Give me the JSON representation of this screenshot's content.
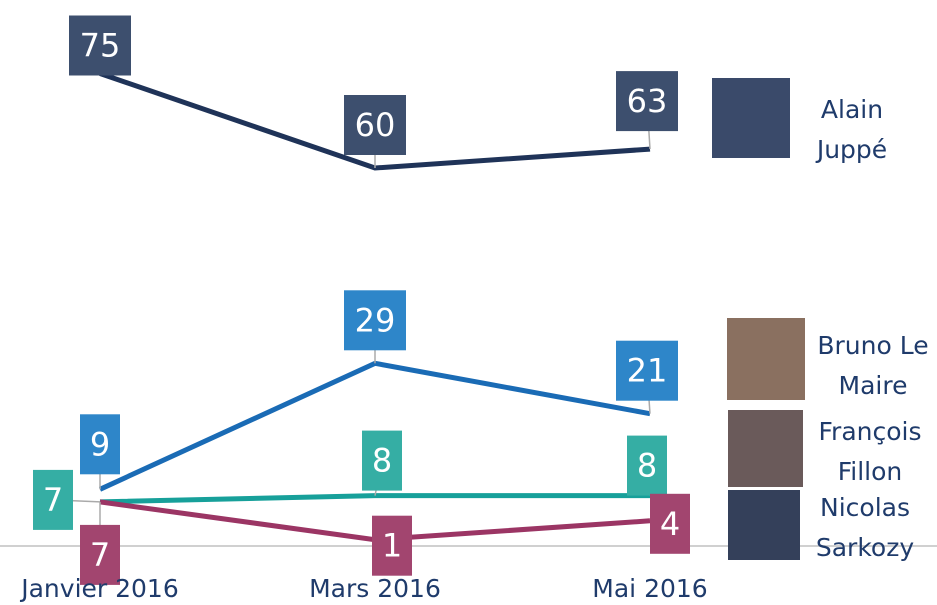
{
  "chart_data": {
    "type": "line",
    "categories": [
      "Janvier 2016",
      "Mars 2016",
      "Mai 2016"
    ],
    "series": [
      {
        "name": "Alain Juppé",
        "color": "#1f3358",
        "values": [
          75,
          60,
          63
        ]
      },
      {
        "name": "Bruno Le Maire",
        "color": "#1a6bb5",
        "values": [
          9,
          29,
          21
        ]
      },
      {
        "name": "François Fillon",
        "color": "#17a09a",
        "values": [
          7,
          8,
          8
        ]
      },
      {
        "name": "Nicolas Sarkozy",
        "color": "#9b3564",
        "values": [
          7,
          1,
          4
        ]
      }
    ],
    "ylim": [
      0,
      80
    ]
  }
}
